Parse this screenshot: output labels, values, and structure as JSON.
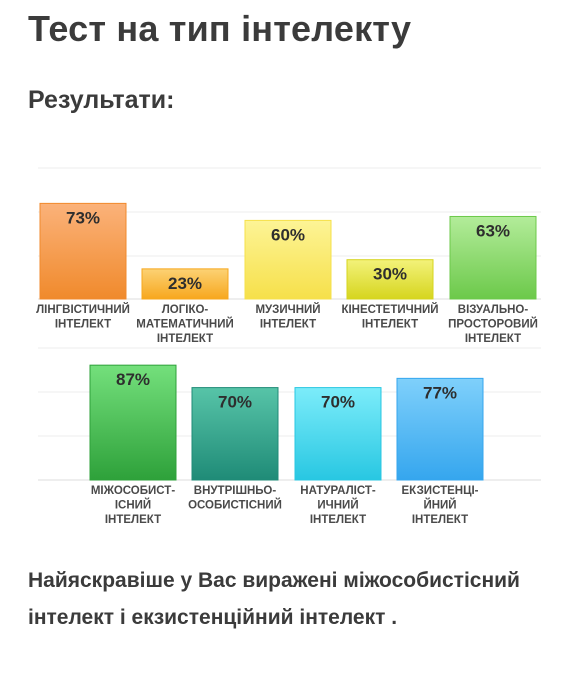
{
  "page": {
    "title": "Тест на тип інтелекту",
    "subtitle": "Результати:",
    "summary": "Найяскравіше у Вас виражені міжособистісний інтелект і екзистенційний інтелект ."
  },
  "chart_data": [
    {
      "type": "bar",
      "ylim": [
        0,
        100
      ],
      "grid": true,
      "categories": [
        [
          "ЛІНГВІСТИЧНИЙ",
          "ІНТЕЛЕКТ"
        ],
        [
          "ЛОГІКО-",
          "МАТЕМАТИЧНИЙ",
          "ІНТЕЛЕКТ"
        ],
        [
          "МУЗИЧНИЙ",
          "ІНТЕЛЕКТ"
        ],
        [
          "КІНЕСТЕТИЧНИЙ",
          "ІНТЕЛЕКТ"
        ],
        [
          "ВІЗУАЛЬНО-",
          "ПРОСТОРОВИЙ",
          "ІНТЕЛЕКТ"
        ]
      ],
      "values": [
        73,
        23,
        60,
        30,
        63
      ],
      "value_labels": [
        "73%",
        "23%",
        "60%",
        "30%",
        "63%"
      ],
      "colors": [
        [
          "#fbb27a",
          "#f08a2c"
        ],
        [
          "#fcd274",
          "#f7a71e"
        ],
        [
          "#fdf496",
          "#f6e04a"
        ],
        [
          "#f3f27a",
          "#d6d51e"
        ],
        [
          "#b3ec9a",
          "#6cc94a"
        ]
      ]
    },
    {
      "type": "bar",
      "ylim": [
        0,
        100
      ],
      "grid": true,
      "categories": [
        [
          "МІЖОСОБИСТ-",
          "ІСНИЙ",
          "ІНТЕЛЕКТ"
        ],
        [
          "ВНУТРІШНЬО-",
          "ОСОБИСТІСНИЙ"
        ],
        [
          "НАТУРАЛІСТ-",
          "ИЧНИЙ",
          "ІНТЕЛЕКТ"
        ],
        [
          "ЕКЗИСТЕНЦІ-",
          "ЙНИЙ",
          "ІНТЕЛЕКТ"
        ]
      ],
      "values": [
        87,
        70,
        70,
        77
      ],
      "value_labels": [
        "87%",
        "70%",
        "70%",
        "77%"
      ],
      "colors": [
        [
          "#74e07c",
          "#2ea13a"
        ],
        [
          "#57c4a8",
          "#1f8b77"
        ],
        [
          "#7cecfa",
          "#28c7e2"
        ],
        [
          "#7fd0fb",
          "#35a6ee"
        ]
      ]
    }
  ]
}
